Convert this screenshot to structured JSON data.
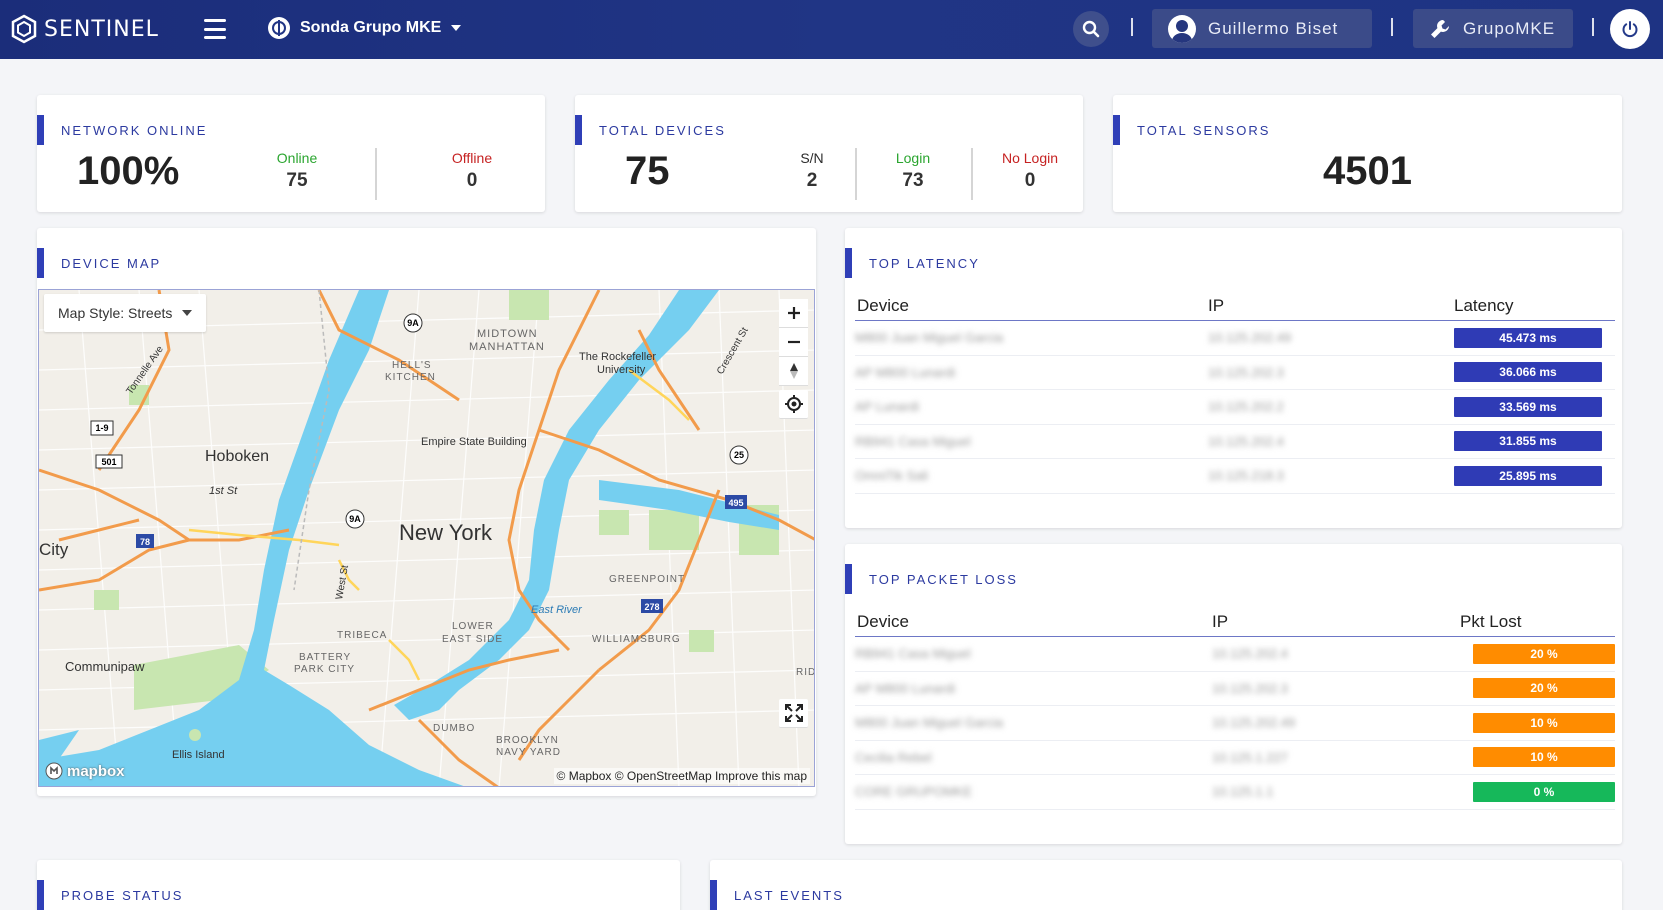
{
  "header": {
    "brand": "SENTINEL",
    "org_name": "Sonda Grupo MKE",
    "user_name": "Guillermo Biset",
    "settings_label": "GrupoMKE"
  },
  "network_online": {
    "title": "NETWORK ONLINE",
    "percent": "100%",
    "online_label": "Online",
    "online_value": "75",
    "offline_label": "Offline",
    "offline_value": "0"
  },
  "total_devices": {
    "title": "TOTAL DEVICES",
    "total": "75",
    "sn_label": "S/N",
    "sn_value": "2",
    "login_label": "Login",
    "login_value": "73",
    "nologin_label": "No Login",
    "nologin_value": "0"
  },
  "total_sensors": {
    "title": "TOTAL SENSORS",
    "value": "4501"
  },
  "device_map": {
    "title": "DEVICE MAP",
    "style_label": "Map Style: Streets",
    "attribution": "© Mapbox © OpenStreetMap Improve this map",
    "logo": "mapbox",
    "labels": {
      "new_york": "New York",
      "hoboken": "Hoboken",
      "city": "City",
      "communipaw": "Communipaw",
      "midtown": "MIDTOWN",
      "manhattan": "MANHATTAN",
      "hells": "HELL'S",
      "kitchen": "KITCHEN",
      "empire": "Empire State Building",
      "rockefeller": "The Rockefeller",
      "university": "University",
      "greenpoint": "GREENPOINT",
      "williamsburg": "WILLIAMSBURG",
      "tribeca": "TRIBECA",
      "battery": "BATTERY",
      "park_city": "PARK CITY",
      "lower": "LOWER",
      "east_side": "EAST SIDE",
      "dumbo": "DUMBO",
      "brooklyn": "BROOKLYN",
      "navy_yard": "NAVY YARD",
      "ellis": "Ellis Island",
      "east_river": "East River",
      "first_st": "1st St",
      "tonnelle": "Tonnelle Ave",
      "crescent": "Crescent St",
      "west_st": "West St",
      "ridg": "RIDG"
    },
    "shields": [
      "9A",
      "9A",
      "1-9",
      "501",
      "78",
      "25",
      "495",
      "278"
    ]
  },
  "top_latency": {
    "title": "TOP LATENCY",
    "columns": [
      "Device",
      "IP",
      "Latency"
    ],
    "rows": [
      {
        "device": "M800 Juan Miguel Garcia",
        "ip": "10.125.202.49",
        "value": "45.473 ms"
      },
      {
        "device": "AP M800 Lunardi",
        "ip": "10.125.202.3",
        "value": "36.066 ms"
      },
      {
        "device": "AP Lunardi",
        "ip": "10.125.202.2",
        "value": "33.569 ms"
      },
      {
        "device": "RB941 Casa Miguel",
        "ip": "10.125.202.4",
        "value": "31.855 ms"
      },
      {
        "device": "OmniTik Sali",
        "ip": "10.125.218.3",
        "value": "25.895 ms"
      }
    ]
  },
  "top_packet_loss": {
    "title": "TOP PACKET LOSS",
    "columns": [
      "Device",
      "IP",
      "Pkt Lost"
    ],
    "rows": [
      {
        "device": "RB941 Casa Miguel",
        "ip": "10.125.202.4",
        "value": "20 %",
        "level": "orange"
      },
      {
        "device": "AP M800 Lunardi",
        "ip": "10.125.202.3",
        "value": "20 %",
        "level": "orange"
      },
      {
        "device": "M800 Juan Miguel Garcia",
        "ip": "10.125.202.49",
        "value": "10 %",
        "level": "orange"
      },
      {
        "device": "Cecilia Rebel",
        "ip": "10.125.1.227",
        "value": "10 %",
        "level": "orange"
      },
      {
        "device": "CORE GRUPOMKE",
        "ip": "10.125.1.1",
        "value": "0 %",
        "level": "green"
      }
    ]
  },
  "probe_status": {
    "title": "PROBE STATUS"
  },
  "last_events": {
    "title": "LAST EVENTS"
  },
  "colors": {
    "nav": "#1e3383",
    "accent": "#2f3fb7",
    "latency_pill": "#2f3bb5",
    "loss_orange": "#ff8c00",
    "loss_green": "#16b85a",
    "online": "#2aa52f",
    "offline": "#c62222"
  }
}
